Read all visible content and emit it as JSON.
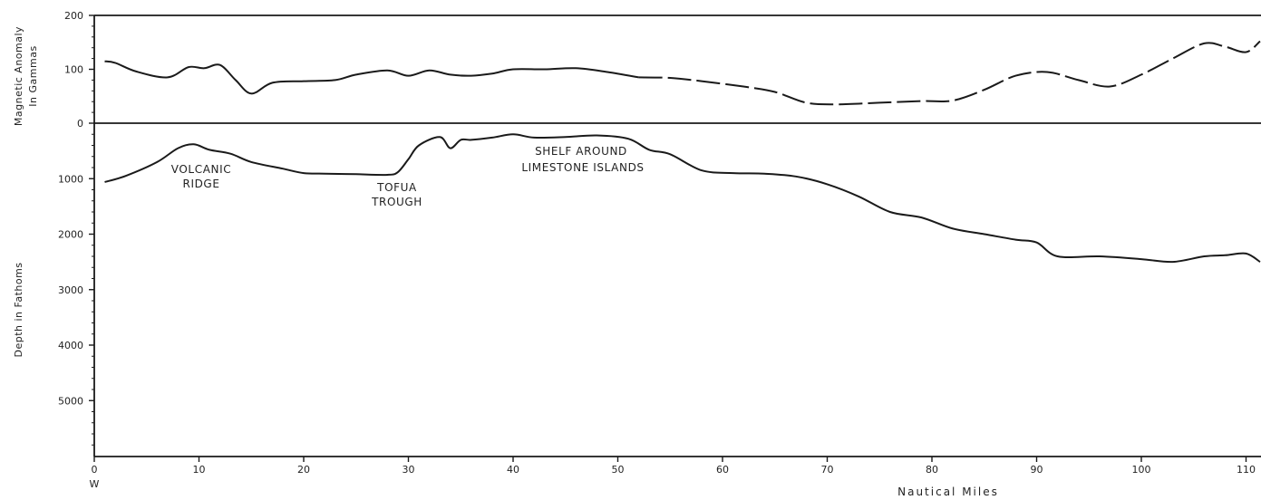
{
  "chart_data": [
    {
      "type": "line",
      "panel": "magnetic",
      "ylabel_line1": "Magnetic Anomaly",
      "ylabel_line2": "In Gammas",
      "ylim": [
        0,
        200
      ],
      "yticks": [
        "200",
        "100",
        "0"
      ],
      "ytick_values": [
        200,
        100,
        0
      ],
      "xlim": [
        0,
        112
      ],
      "x": [
        1,
        2,
        4,
        7,
        9,
        10.5,
        12,
        13.5,
        15,
        17,
        20,
        23,
        25,
        28,
        30,
        32,
        34,
        36,
        38,
        40,
        43,
        46,
        49,
        52,
        55,
        58,
        62,
        65,
        68,
        71,
        75,
        79,
        82,
        85,
        88,
        91,
        94,
        97,
        100,
        103,
        106,
        108,
        110,
        112
      ],
      "y": [
        115,
        112,
        96,
        85,
        104,
        102,
        108,
        80,
        55,
        75,
        78,
        80,
        90,
        98,
        88,
        98,
        90,
        88,
        92,
        100,
        100,
        102,
        95,
        85,
        84,
        78,
        68,
        58,
        38,
        35,
        38,
        41,
        42,
        62,
        88,
        95,
        80,
        68,
        90,
        120,
        148,
        142,
        132,
        152
      ]
    },
    {
      "type": "line",
      "panel": "depth",
      "ylabel": "Depth in Fathoms",
      "ylim": [
        0,
        6000
      ],
      "inverted": true,
      "yticks": [
        "1000",
        "2000",
        "3000",
        "4000",
        "5000"
      ],
      "ytick_values": [
        1000,
        2000,
        3000,
        4000,
        5000
      ],
      "xlim": [
        0,
        112
      ],
      "x": [
        1,
        3,
        6,
        8,
        9.5,
        11,
        13,
        15,
        18,
        20,
        22,
        25,
        28,
        29,
        30,
        31,
        33,
        34,
        35,
        36,
        38,
        40,
        42,
        45,
        48,
        51,
        53,
        55,
        58,
        61,
        64,
        67,
        70,
        73,
        76,
        79,
        82,
        85,
        88,
        90,
        92,
        96,
        100,
        103,
        106,
        108,
        110,
        112
      ],
      "y": [
        1060,
        950,
        700,
        450,
        380,
        480,
        550,
        700,
        820,
        900,
        910,
        920,
        930,
        880,
        650,
        400,
        250,
        450,
        300,
        300,
        260,
        200,
        260,
        250,
        220,
        280,
        480,
        560,
        850,
        900,
        910,
        960,
        1100,
        1320,
        1600,
        1700,
        1900,
        2000,
        2100,
        2150,
        2400,
        2400,
        2450,
        2500,
        2400,
        2380,
        2350,
        2500
      ]
    }
  ],
  "x_axis": {
    "ticks": [
      "0",
      "10",
      "20",
      "30",
      "40",
      "50",
      "60",
      "70",
      "80",
      "90",
      "100",
      "110"
    ],
    "tick_values": [
      0,
      10,
      20,
      30,
      40,
      50,
      60,
      70,
      80,
      90,
      100,
      110
    ],
    "origin_marker": "W",
    "label": "Nautical Miles"
  },
  "annotations": {
    "volcanic_ridge_line1": "VOLCANIC",
    "volcanic_ridge_line2": "RIDGE",
    "tofua_trough_line1": "TOFUA",
    "tofua_trough_line2": "TROUGH",
    "shelf_line1": "SHELF AROUND",
    "shelf_line2": "LIMESTONE ISLANDS"
  },
  "colors": {
    "ink": "#1a1a1a",
    "background": "#ffffff"
  }
}
